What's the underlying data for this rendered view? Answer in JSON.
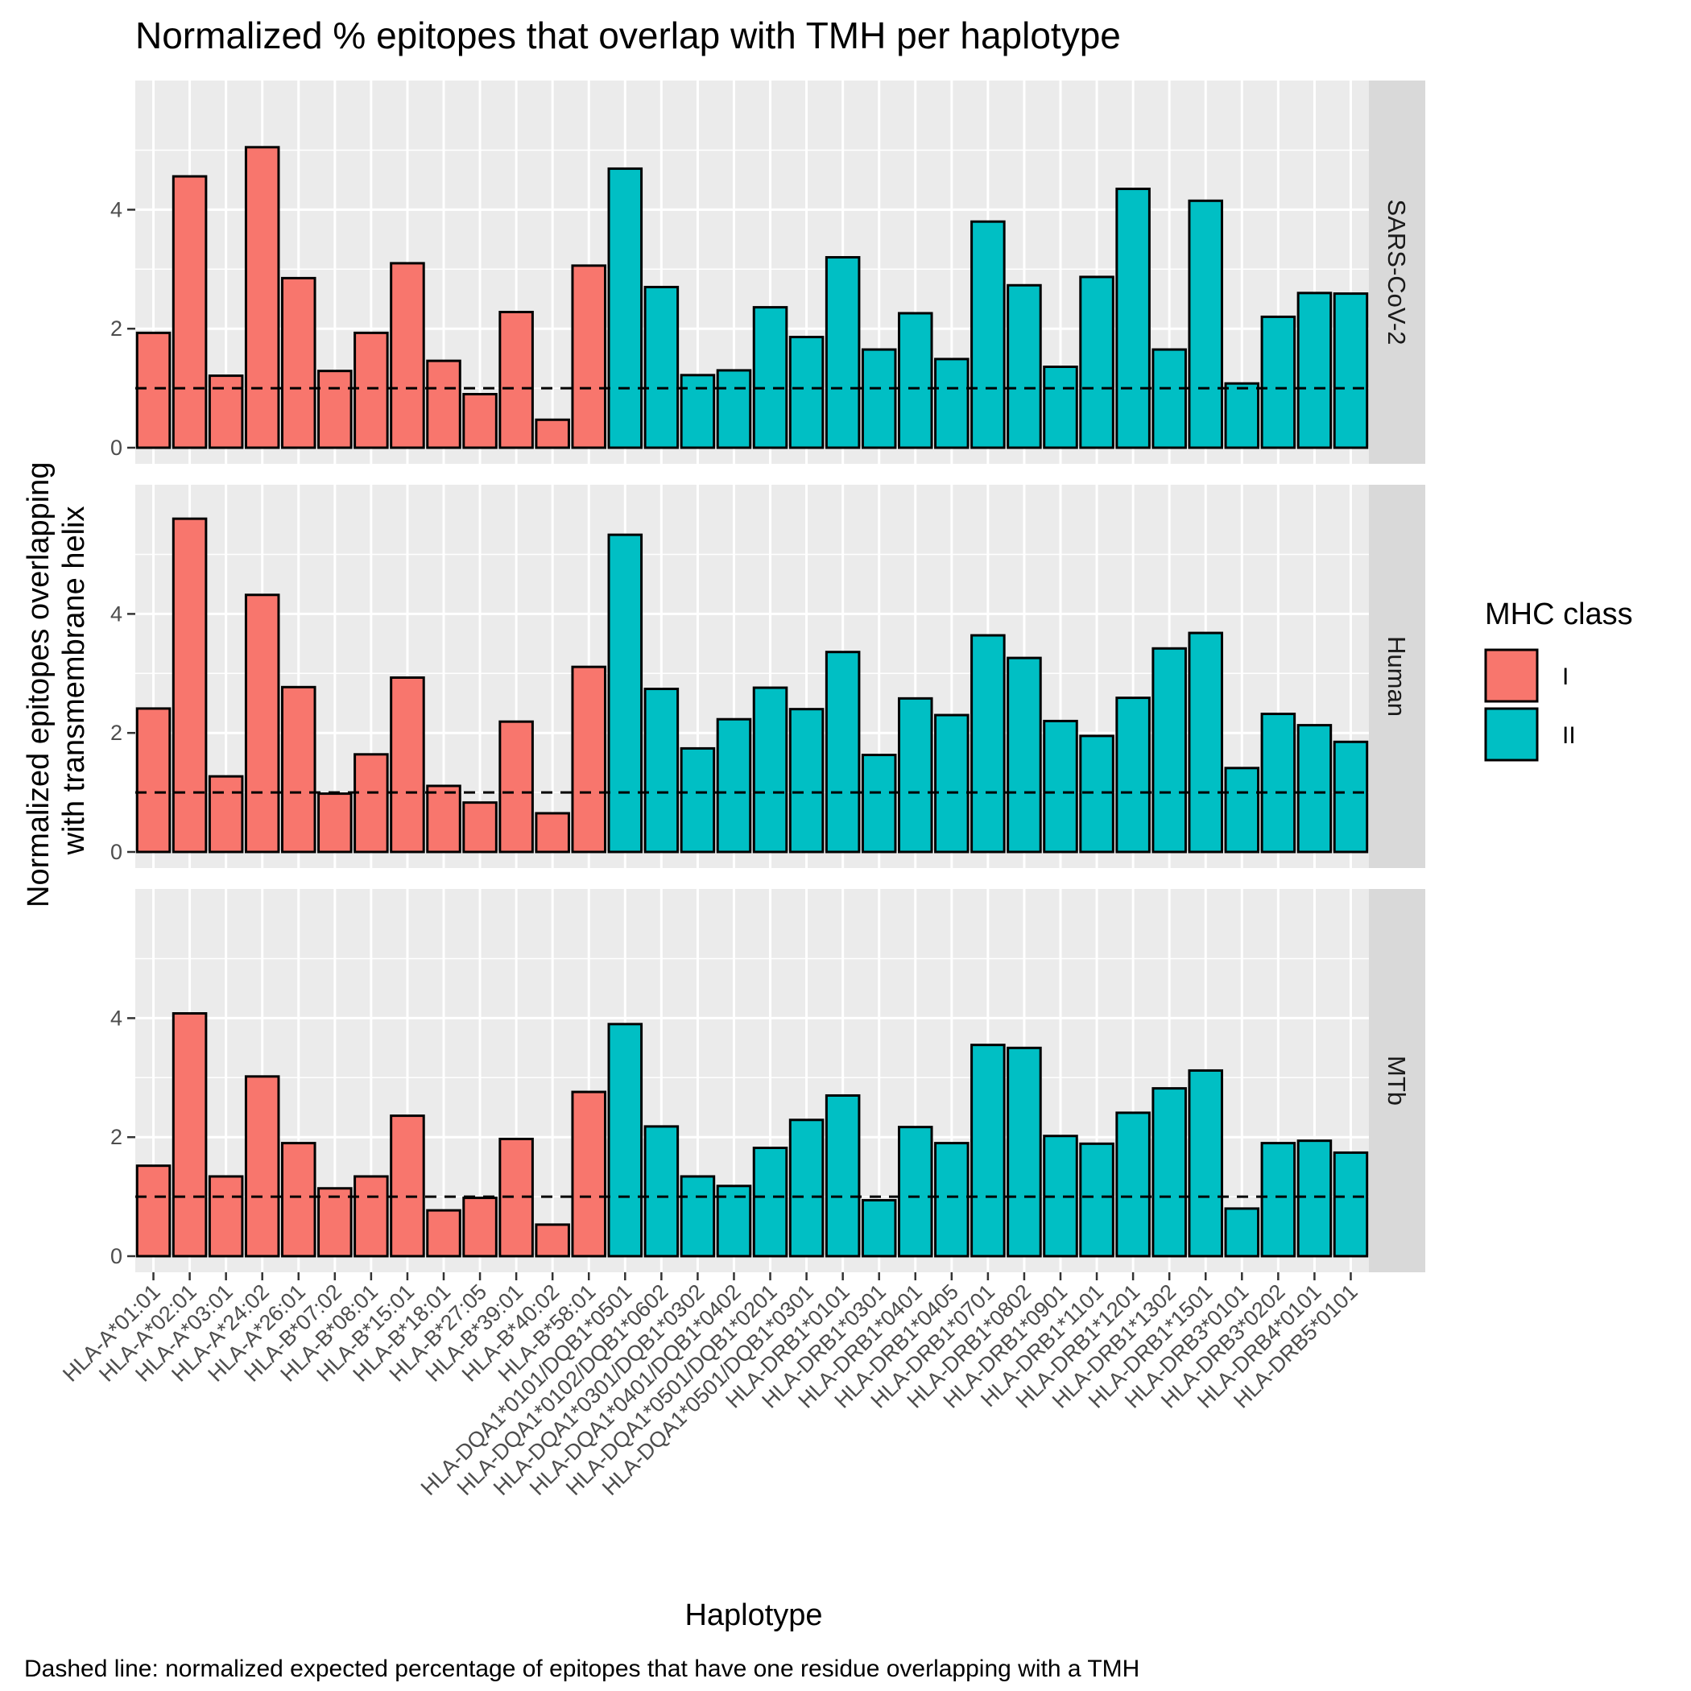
{
  "chart_data": {
    "type": "bar",
    "title": "Normalized % epitopes that overlap with TMH per haplotype",
    "xlabel": "Haplotype",
    "ylabel_lines": [
      "Normalized epitopes overlapping",
      "with transmembrane helix"
    ],
    "caption": "Dashed line: normalized expected percentage of epitopes that have one residue overlapping with a TMH",
    "categories": [
      "HLA-A*01:01",
      "HLA-A*02:01",
      "HLA-A*03:01",
      "HLA-A*24:02",
      "HLA-A*26:01",
      "HLA-B*07:02",
      "HLA-B*08:01",
      "HLA-B*15:01",
      "HLA-B*18:01",
      "HLA-B*27:05",
      "HLA-B*39:01",
      "HLA-B*40:02",
      "HLA-B*58:01",
      "HLA-DQA1*0101/DQB1*0501",
      "HLA-DQA1*0102/DQB1*0602",
      "HLA-DQA1*0301/DQB1*0302",
      "HLA-DQA1*0401/DQB1*0402",
      "HLA-DQA1*0501/DQB1*0201",
      "HLA-DQA1*0501/DQB1*0301",
      "HLA-DRB1*0101",
      "HLA-DRB1*0301",
      "HLA-DRB1*0401",
      "HLA-DRB1*0405",
      "HLA-DRB1*0701",
      "HLA-DRB1*0802",
      "HLA-DRB1*0901",
      "HLA-DRB1*1101",
      "HLA-DRB1*1201",
      "HLA-DRB1*1302",
      "HLA-DRB1*1501",
      "HLA-DRB3*0101",
      "HLA-DRB3*0202",
      "HLA-DRB4*0101",
      "HLA-DRB5*0101"
    ],
    "mhc_class": [
      "I",
      "I",
      "I",
      "I",
      "I",
      "I",
      "I",
      "I",
      "I",
      "I",
      "I",
      "I",
      "I",
      "II",
      "II",
      "II",
      "II",
      "II",
      "II",
      "II",
      "II",
      "II",
      "II",
      "II",
      "II",
      "II",
      "II",
      "II",
      "II",
      "II",
      "II",
      "II",
      "II",
      "II"
    ],
    "facets": [
      {
        "name": "SARS-CoV-2",
        "values": [
          1.93,
          4.56,
          1.21,
          5.05,
          2.85,
          1.29,
          1.93,
          3.1,
          1.46,
          0.9,
          2.28,
          0.47,
          3.06,
          4.69,
          2.7,
          1.22,
          1.3,
          2.36,
          1.86,
          3.2,
          1.65,
          2.26,
          1.49,
          3.8,
          2.73,
          1.36,
          2.87,
          4.35,
          1.65,
          4.15,
          1.08,
          2.2,
          2.6,
          2.59
        ]
      },
      {
        "name": "Human",
        "values": [
          2.41,
          5.6,
          1.27,
          4.32,
          2.77,
          0.98,
          1.64,
          2.93,
          1.11,
          0.83,
          2.19,
          0.65,
          3.11,
          5.33,
          2.74,
          1.74,
          2.23,
          2.76,
          2.4,
          3.36,
          1.63,
          2.58,
          2.3,
          3.64,
          3.26,
          2.2,
          1.95,
          2.59,
          3.42,
          3.68,
          1.41,
          2.32,
          2.13,
          1.85
        ]
      },
      {
        "name": "MTb",
        "values": [
          1.52,
          4.08,
          1.34,
          3.02,
          1.9,
          1.14,
          1.34,
          2.36,
          0.77,
          0.98,
          1.97,
          0.53,
          2.76,
          3.9,
          2.18,
          1.34,
          1.18,
          1.82,
          2.29,
          2.7,
          0.94,
          2.17,
          1.9,
          3.55,
          3.5,
          2.02,
          1.89,
          2.41,
          2.82,
          3.12,
          0.8,
          1.9,
          1.94,
          1.74
        ]
      }
    ],
    "expected_line": 1,
    "ylim": [
      0,
      5.9
    ],
    "yticks": [
      0,
      2,
      4
    ],
    "legend": {
      "title": "MHC class",
      "items": [
        {
          "label": "I",
          "color": "#F8766D"
        },
        {
          "label": "II",
          "color": "#00BFC4"
        }
      ],
      "position": "right"
    },
    "colors": {
      "I": "#F8766D",
      "II": "#00BFC4",
      "panel": "#EBEBEB",
      "strip": "#D9D9D9",
      "grid": "#FFFFFF"
    },
    "grid": true
  }
}
